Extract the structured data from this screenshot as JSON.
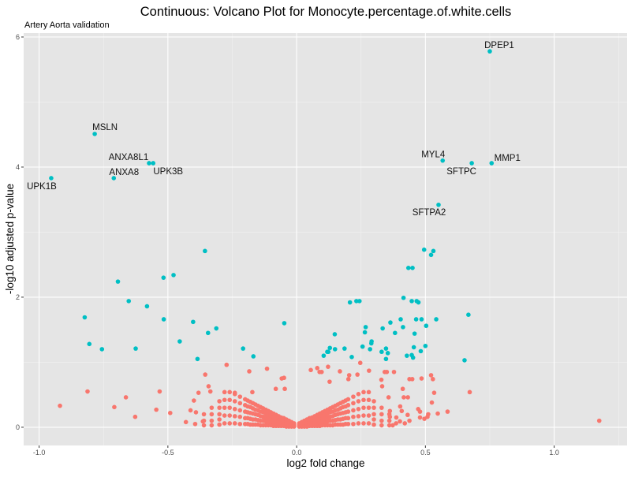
{
  "chart_data": {
    "type": "scatter",
    "title": "Continuous: Volcano Plot for Monocyte.percentage.of.white.cells",
    "subtitle": "Artery Aorta validation",
    "xlabel": "log2 fold change",
    "ylabel": "-log10 adjusted p-value",
    "xlim": [
      -1.06,
      1.283
    ],
    "ylim": [
      -0.28,
      6.06
    ],
    "xticks": [
      -1.0,
      -0.5,
      0.0,
      0.5,
      1.0
    ],
    "xtick_labels": [
      "-1.0",
      "-0.5",
      "0.0",
      "0.5",
      "1.0"
    ],
    "xminor": [
      -0.75,
      -0.25,
      0.25,
      0.75,
      1.25
    ],
    "yticks": [
      0,
      2,
      4,
      6
    ],
    "ytick_labels": [
      "0",
      "2",
      "4",
      "6"
    ],
    "yminor": [
      1,
      3,
      5
    ],
    "grid": true,
    "legend": "none",
    "colors": {
      "significant": "#00BFC4",
      "not_significant": "#F8766D",
      "panel": "#E5E5E5",
      "grid": "#FFFFFF"
    },
    "labeled_points": [
      {
        "gene": "DPEP1",
        "x": 0.75,
        "y": 5.78
      },
      {
        "gene": "MSLN",
        "x": -0.784,
        "y": 4.51
      },
      {
        "gene": "ANXA8L1",
        "x": -0.573,
        "y": 4.06
      },
      {
        "gene": "UPK3B",
        "x": -0.557,
        "y": 4.06
      },
      {
        "gene": "ANXA8",
        "x": -0.71,
        "y": 3.83
      },
      {
        "gene": "UPK1B",
        "x": -0.953,
        "y": 3.83
      },
      {
        "gene": "MYL4",
        "x": 0.567,
        "y": 4.1
      },
      {
        "gene": "SFTPC",
        "x": 0.68,
        "y": 4.06
      },
      {
        "gene": "MMP1",
        "x": 0.757,
        "y": 4.06
      },
      {
        "gene": "SFTPA2",
        "x": 0.551,
        "y": 3.42
      }
    ],
    "significant_points": [
      [
        -0.356,
        2.71
      ],
      [
        -0.517,
        2.3
      ],
      [
        -0.478,
        2.34
      ],
      [
        -0.694,
        2.24
      ],
      [
        -0.652,
        1.94
      ],
      [
        -0.581,
        1.86
      ],
      [
        -0.823,
        1.69
      ],
      [
        -0.516,
        1.66
      ],
      [
        -0.402,
        1.62
      ],
      [
        -0.312,
        1.52
      ],
      [
        -0.344,
        1.45
      ],
      [
        -0.048,
        1.6
      ],
      [
        -0.805,
        1.28
      ],
      [
        -0.756,
        1.2
      ],
      [
        -0.625,
        1.21
      ],
      [
        -0.454,
        1.32
      ],
      [
        -0.208,
        1.21
      ],
      [
        -0.168,
        1.09
      ],
      [
        -0.385,
        1.05
      ],
      [
        0.495,
        2.73
      ],
      [
        0.531,
        2.71
      ],
      [
        0.522,
        2.65
      ],
      [
        0.434,
        2.45
      ],
      [
        0.45,
        2.45
      ],
      [
        0.415,
        1.99
      ],
      [
        0.207,
        1.92
      ],
      [
        0.232,
        1.94
      ],
      [
        0.244,
        1.94
      ],
      [
        0.447,
        1.94
      ],
      [
        0.466,
        1.94
      ],
      [
        0.473,
        1.92
      ],
      [
        0.667,
        1.73
      ],
      [
        0.404,
        1.66
      ],
      [
        0.464,
        1.66
      ],
      [
        0.485,
        1.66
      ],
      [
        0.542,
        1.66
      ],
      [
        0.364,
        1.61
      ],
      [
        0.334,
        1.52
      ],
      [
        0.413,
        1.54
      ],
      [
        0.503,
        1.56
      ],
      [
        0.382,
        1.45
      ],
      [
        0.458,
        1.44
      ],
      [
        0.268,
        1.54
      ],
      [
        0.265,
        1.46
      ],
      [
        0.291,
        1.32
      ],
      [
        0.29,
        1.29
      ],
      [
        0.148,
        1.43
      ],
      [
        0.129,
        1.22
      ],
      [
        0.119,
        1.16
      ],
      [
        0.123,
        1.16
      ],
      [
        0.105,
        1.1
      ],
      [
        0.149,
        1.2
      ],
      [
        0.186,
        1.21
      ],
      [
        0.214,
        1.08
      ],
      [
        0.256,
        1.24
      ],
      [
        0.285,
        1.2
      ],
      [
        0.33,
        1.16
      ],
      [
        0.347,
        1.21
      ],
      [
        0.354,
        1.14
      ],
      [
        0.347,
        1.05
      ],
      [
        0.455,
        1.23
      ],
      [
        0.482,
        1.17
      ],
      [
        0.5,
        1.25
      ],
      [
        0.428,
        1.1
      ],
      [
        0.447,
        1.11
      ],
      [
        0.452,
        1.07
      ],
      [
        0.652,
        1.03
      ]
    ],
    "nonsignificant_points": [
      [
        -0.919,
        0.33
      ],
      [
        -0.812,
        0.55
      ],
      [
        -0.708,
        0.31
      ],
      [
        -0.663,
        0.46
      ],
      [
        -0.627,
        0.16
      ],
      [
        -0.532,
        0.55
      ],
      [
        -0.545,
        0.27
      ],
      [
        -0.491,
        0.22
      ],
      [
        -0.272,
        0.96
      ],
      [
        -0.355,
        0.81
      ],
      [
        -0.184,
        0.86
      ],
      [
        -0.115,
        0.9
      ],
      [
        -0.049,
        0.76
      ],
      [
        -0.058,
        0.75
      ],
      [
        -0.342,
        0.63
      ],
      [
        -0.381,
        0.53
      ],
      [
        -0.399,
        0.41
      ],
      [
        -0.412,
        0.26
      ],
      [
        -0.391,
        0.23
      ],
      [
        -0.43,
        0.08
      ],
      [
        -0.394,
        0.05
      ],
      [
        -0.364,
        0.09
      ],
      [
        -0.335,
        0.55
      ],
      [
        -0.24,
        0.53
      ],
      [
        -0.172,
        0.54
      ],
      [
        -0.081,
        0.59
      ],
      [
        -0.046,
        0.59
      ],
      [
        1.175,
        0.1
      ],
      [
        0.672,
        0.54
      ],
      [
        0.586,
        0.24
      ],
      [
        0.548,
        0.21
      ],
      [
        0.534,
        0.53
      ],
      [
        0.525,
        0.38
      ],
      [
        0.522,
        0.8
      ],
      [
        0.529,
        0.74
      ],
      [
        0.485,
        0.75
      ],
      [
        0.438,
        0.74
      ],
      [
        0.449,
        0.74
      ],
      [
        0.378,
        0.85
      ],
      [
        0.342,
        0.85
      ],
      [
        0.35,
        0.85
      ],
      [
        0.281,
        0.87
      ],
      [
        0.247,
        0.99
      ],
      [
        0.168,
        0.86
      ],
      [
        0.122,
        0.93
      ],
      [
        0.08,
        0.91
      ],
      [
        0.055,
        0.88
      ],
      [
        0.089,
        0.85
      ],
      [
        0.097,
        0.85
      ],
      [
        0.236,
        0.81
      ],
      [
        0.204,
        0.8
      ],
      [
        0.201,
        0.74
      ],
      [
        0.329,
        0.73
      ],
      [
        0.332,
        0.63
      ],
      [
        0.412,
        0.59
      ],
      [
        0.416,
        0.46
      ],
      [
        0.432,
        0.46
      ],
      [
        0.357,
        0.46
      ],
      [
        0.402,
        0.32
      ],
      [
        0.472,
        0.28
      ],
      [
        0.479,
        0.24
      ],
      [
        0.511,
        0.2
      ],
      [
        0.508,
        0.16
      ],
      [
        0.496,
        0.13
      ],
      [
        0.479,
        0.15
      ],
      [
        0.438,
        0.1
      ],
      [
        0.42,
        0.06
      ],
      [
        0.386,
        0.06
      ],
      [
        0.373,
        0.03
      ],
      [
        0.401,
        0.09
      ],
      [
        0.431,
        0.19
      ],
      [
        0.408,
        0.25
      ],
      [
        0.362,
        0.25
      ],
      [
        0.387,
        0.15
      ],
      [
        0.362,
        0.16
      ],
      [
        0.128,
        0.7
      ]
    ],
    "nonsignificant_cloud": [
      [
        -0.36,
        [
          0.03,
          0.1,
          0.2
        ]
      ],
      [
        -0.33,
        [
          0.03,
          0.1,
          0.2,
          0.3
        ]
      ],
      [
        -0.3,
        [
          0.04,
          0.12,
          0.2,
          0.3,
          0.4
        ]
      ],
      [
        -0.28,
        [
          0.06,
          0.18,
          0.3,
          0.42,
          0.54
        ]
      ],
      [
        -0.26,
        [
          0.06,
          0.18,
          0.3,
          0.42,
          0.54
        ]
      ],
      [
        -0.24,
        [
          0.06,
          0.17,
          0.28,
          0.4,
          0.51
        ]
      ],
      [
        -0.22,
        [
          0.05,
          0.16,
          0.26,
          0.37,
          0.47
        ]
      ],
      [
        -0.2,
        [
          0.05,
          0.14,
          0.24,
          0.34,
          0.43
        ]
      ],
      [
        -0.19,
        [
          0.05,
          0.14,
          0.23,
          0.32,
          0.41
        ]
      ],
      [
        -0.18,
        [
          0.04,
          0.13,
          0.22,
          0.31,
          0.39
        ]
      ],
      [
        -0.17,
        [
          0.04,
          0.12,
          0.21,
          0.29,
          0.37
        ]
      ],
      [
        -0.16,
        [
          0.04,
          0.12,
          0.2,
          0.27,
          0.35
        ]
      ],
      [
        -0.15,
        [
          0.04,
          0.11,
          0.19,
          0.26,
          0.33
        ]
      ],
      [
        -0.14,
        [
          0.03,
          0.1,
          0.17,
          0.24,
          0.31
        ]
      ],
      [
        -0.13,
        [
          0.03,
          0.1,
          0.16,
          0.23,
          0.29
        ]
      ],
      [
        -0.12,
        [
          0.03,
          0.09,
          0.15,
          0.21,
          0.27
        ]
      ],
      [
        -0.11,
        [
          0.03,
          0.08,
          0.14,
          0.2,
          0.25
        ]
      ],
      [
        -0.1,
        [
          0.03,
          0.08,
          0.13,
          0.18,
          0.23
        ]
      ],
      [
        -0.09,
        [
          0.02,
          0.07,
          0.12,
          0.17,
          0.21
        ]
      ],
      [
        -0.08,
        [
          0.02,
          0.06,
          0.11,
          0.15,
          0.19
        ]
      ],
      [
        -0.07,
        [
          0.02,
          0.06,
          0.1,
          0.14,
          0.17
        ]
      ],
      [
        -0.06,
        [
          0.02,
          0.05,
          0.09,
          0.12,
          0.15
        ]
      ],
      [
        -0.05,
        [
          0.02,
          0.05,
          0.08,
          0.11,
          0.14
        ]
      ],
      [
        -0.04,
        [
          0.01,
          0.04,
          0.06,
          0.09,
          0.12
        ]
      ],
      [
        -0.03,
        [
          0.01,
          0.03,
          0.05,
          0.07,
          0.1
        ]
      ],
      [
        -0.02,
        [
          0.01,
          0.03,
          0.04,
          0.06,
          0.08
        ]
      ],
      [
        -0.01,
        [
          0.01,
          0.02,
          0.03,
          0.04,
          0.06
        ]
      ],
      [
        0.01,
        [
          0.01,
          0.02,
          0.03,
          0.04,
          0.06
        ]
      ],
      [
        0.02,
        [
          0.01,
          0.03,
          0.04,
          0.06,
          0.08
        ]
      ],
      [
        0.03,
        [
          0.01,
          0.03,
          0.05,
          0.07,
          0.1
        ]
      ],
      [
        0.04,
        [
          0.01,
          0.04,
          0.06,
          0.09,
          0.12
        ]
      ],
      [
        0.05,
        [
          0.02,
          0.05,
          0.08,
          0.11,
          0.14
        ]
      ],
      [
        0.06,
        [
          0.02,
          0.05,
          0.09,
          0.12,
          0.15
        ]
      ],
      [
        0.07,
        [
          0.02,
          0.06,
          0.1,
          0.14,
          0.17
        ]
      ],
      [
        0.08,
        [
          0.02,
          0.06,
          0.11,
          0.15,
          0.19
        ]
      ],
      [
        0.09,
        [
          0.02,
          0.07,
          0.12,
          0.17,
          0.21
        ]
      ],
      [
        0.1,
        [
          0.03,
          0.08,
          0.13,
          0.18,
          0.23
        ]
      ],
      [
        0.11,
        [
          0.03,
          0.08,
          0.14,
          0.2,
          0.25
        ]
      ],
      [
        0.12,
        [
          0.03,
          0.09,
          0.15,
          0.21,
          0.27
        ]
      ],
      [
        0.13,
        [
          0.03,
          0.1,
          0.16,
          0.23,
          0.29
        ]
      ],
      [
        0.14,
        [
          0.03,
          0.1,
          0.17,
          0.24,
          0.31
        ]
      ],
      [
        0.15,
        [
          0.04,
          0.11,
          0.19,
          0.26,
          0.33
        ]
      ],
      [
        0.16,
        [
          0.04,
          0.12,
          0.2,
          0.27,
          0.35
        ]
      ],
      [
        0.17,
        [
          0.04,
          0.12,
          0.21,
          0.29,
          0.37
        ]
      ],
      [
        0.18,
        [
          0.04,
          0.13,
          0.22,
          0.31,
          0.39
        ]
      ],
      [
        0.19,
        [
          0.05,
          0.14,
          0.23,
          0.32,
          0.41
        ]
      ],
      [
        0.2,
        [
          0.05,
          0.14,
          0.24,
          0.34,
          0.43
        ]
      ],
      [
        0.22,
        [
          0.05,
          0.16,
          0.26,
          0.37,
          0.47
        ]
      ],
      [
        0.24,
        [
          0.06,
          0.17,
          0.28,
          0.4,
          0.51
        ]
      ],
      [
        0.26,
        [
          0.06,
          0.18,
          0.3,
          0.42,
          0.54
        ]
      ],
      [
        0.28,
        [
          0.06,
          0.18,
          0.3,
          0.42,
          0.54
        ]
      ],
      [
        0.3,
        [
          0.04,
          0.12,
          0.2,
          0.3,
          0.4
        ]
      ],
      [
        0.33,
        [
          0.03,
          0.1,
          0.2,
          0.3
        ]
      ],
      [
        0.36,
        [
          0.03,
          0.1,
          0.2
        ]
      ]
    ]
  }
}
